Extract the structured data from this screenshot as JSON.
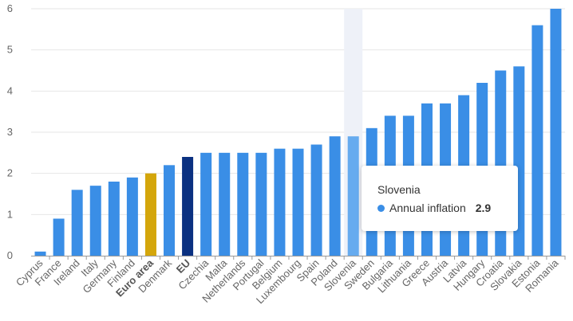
{
  "chart_data": {
    "type": "bar",
    "series": [
      {
        "name": "Annual inflation",
        "values": [
          0.1,
          0.9,
          1.6,
          1.7,
          1.8,
          1.9,
          2.0,
          2.2,
          2.4,
          2.5,
          2.5,
          2.5,
          2.5,
          2.6,
          2.6,
          2.7,
          2.9,
          2.9,
          3.1,
          3.4,
          3.4,
          3.7,
          3.7,
          3.9,
          4.2,
          4.5,
          4.6,
          5.6,
          6.0
        ]
      }
    ],
    "categories": [
      "Cyprus",
      "France",
      "Ireland",
      "Italy",
      "Germany",
      "Finland",
      "Euro area",
      "Denmark",
      "EU",
      "Czechia",
      "Malta",
      "Netherlands",
      "Portugal",
      "Belgium",
      "Luxembourg",
      "Spain",
      "Poland",
      "Slovenia",
      "Sweden",
      "Bulgaria",
      "Lithuania",
      "Greece",
      "Austria",
      "Latvia",
      "Hungary",
      "Croatia",
      "Slovakia",
      "Estonia",
      "Romania"
    ],
    "bold_categories": [
      "Euro area",
      "EU"
    ],
    "ylim": [
      0,
      6
    ],
    "yticks": [
      "0",
      "1",
      "2",
      "3",
      "4",
      "5",
      "6"
    ],
    "grid": true,
    "xlabel": "",
    "ylabel": "",
    "title": "",
    "colors": {
      "default": "#3a8ee6",
      "euro_area": "#d4a60b",
      "eu": "#0b3181",
      "highlighted": "#66abef",
      "hover_band": "#eef1f8",
      "grid": "#e6e6e6",
      "axis": "#9a9a9a"
    },
    "highlighted_category": "Slovenia"
  },
  "tooltip": {
    "title": "Slovenia",
    "series_label": "Annual inflation",
    "value": "2.9",
    "dot_color": "#3a8ee6"
  }
}
